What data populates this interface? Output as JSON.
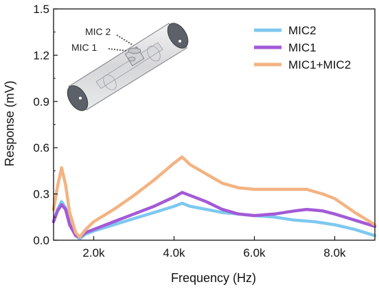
{
  "chart_data": {
    "type": "line",
    "xlabel": "Frequency (Hz)",
    "ylabel": "Response (mV)",
    "xlim": [
      1000,
      9000
    ],
    "ylim": [
      0,
      1.5
    ],
    "xticks": [
      2000,
      4000,
      6000,
      8000
    ],
    "xtick_labels": [
      "2.0k",
      "4.0k",
      "6.0k",
      "8.0k"
    ],
    "yticks": [
      0.0,
      0.3,
      0.6,
      0.9,
      1.2,
      1.5
    ],
    "ytick_labels": [
      "0.0",
      "0.3",
      "0.6",
      "0.9",
      "1.2",
      "1.5"
    ],
    "grid": false,
    "legend_position": "top-right",
    "series": [
      {
        "name": "MIC2",
        "color": "#7ec8f0",
        "points": [
          [
            1000,
            0.12
          ],
          [
            1100,
            0.2
          ],
          [
            1200,
            0.25
          ],
          [
            1300,
            0.21
          ],
          [
            1400,
            0.11
          ],
          [
            1550,
            0.03
          ],
          [
            1650,
            0.01
          ],
          [
            1800,
            0.04
          ],
          [
            2000,
            0.06
          ],
          [
            2500,
            0.1
          ],
          [
            3000,
            0.14
          ],
          [
            3500,
            0.18
          ],
          [
            4000,
            0.22
          ],
          [
            4200,
            0.24
          ],
          [
            4400,
            0.22
          ],
          [
            4800,
            0.2
          ],
          [
            5200,
            0.18
          ],
          [
            5600,
            0.17
          ],
          [
            6000,
            0.16
          ],
          [
            6500,
            0.15
          ],
          [
            7000,
            0.13
          ],
          [
            7500,
            0.12
          ],
          [
            8000,
            0.1
          ],
          [
            8500,
            0.07
          ],
          [
            9000,
            0.03
          ]
        ]
      },
      {
        "name": "MIC1",
        "color": "#a35ad6",
        "points": [
          [
            1000,
            0.12
          ],
          [
            1100,
            0.19
          ],
          [
            1200,
            0.23
          ],
          [
            1300,
            0.2
          ],
          [
            1400,
            0.1
          ],
          [
            1550,
            0.03
          ],
          [
            1650,
            0.02
          ],
          [
            1800,
            0.05
          ],
          [
            2000,
            0.07
          ],
          [
            2500,
            0.12
          ],
          [
            3000,
            0.17
          ],
          [
            3500,
            0.22
          ],
          [
            4000,
            0.28
          ],
          [
            4200,
            0.31
          ],
          [
            4400,
            0.29
          ],
          [
            4800,
            0.25
          ],
          [
            5200,
            0.2
          ],
          [
            5600,
            0.17
          ],
          [
            6000,
            0.16
          ],
          [
            6500,
            0.17
          ],
          [
            7000,
            0.19
          ],
          [
            7300,
            0.2
          ],
          [
            7700,
            0.19
          ],
          [
            8000,
            0.17
          ],
          [
            8500,
            0.13
          ],
          [
            9000,
            0.09
          ]
        ]
      },
      {
        "name": "MIC1+MIC2",
        "color": "#f3b382",
        "points": [
          [
            1000,
            0.2
          ],
          [
            1100,
            0.35
          ],
          [
            1200,
            0.47
          ],
          [
            1300,
            0.36
          ],
          [
            1400,
            0.18
          ],
          [
            1550,
            0.05
          ],
          [
            1650,
            0.02
          ],
          [
            1800,
            0.07
          ],
          [
            2000,
            0.12
          ],
          [
            2500,
            0.2
          ],
          [
            3000,
            0.29
          ],
          [
            3500,
            0.39
          ],
          [
            4000,
            0.5
          ],
          [
            4200,
            0.54
          ],
          [
            4400,
            0.49
          ],
          [
            4800,
            0.43
          ],
          [
            5200,
            0.37
          ],
          [
            5600,
            0.34
          ],
          [
            6000,
            0.33
          ],
          [
            6500,
            0.33
          ],
          [
            7000,
            0.33
          ],
          [
            7300,
            0.33
          ],
          [
            7700,
            0.3
          ],
          [
            8000,
            0.27
          ],
          [
            8500,
            0.18
          ],
          [
            9000,
            0.1
          ]
        ]
      }
    ],
    "inset": {
      "labels": [
        "MIC 2",
        "MIC 1"
      ]
    }
  }
}
